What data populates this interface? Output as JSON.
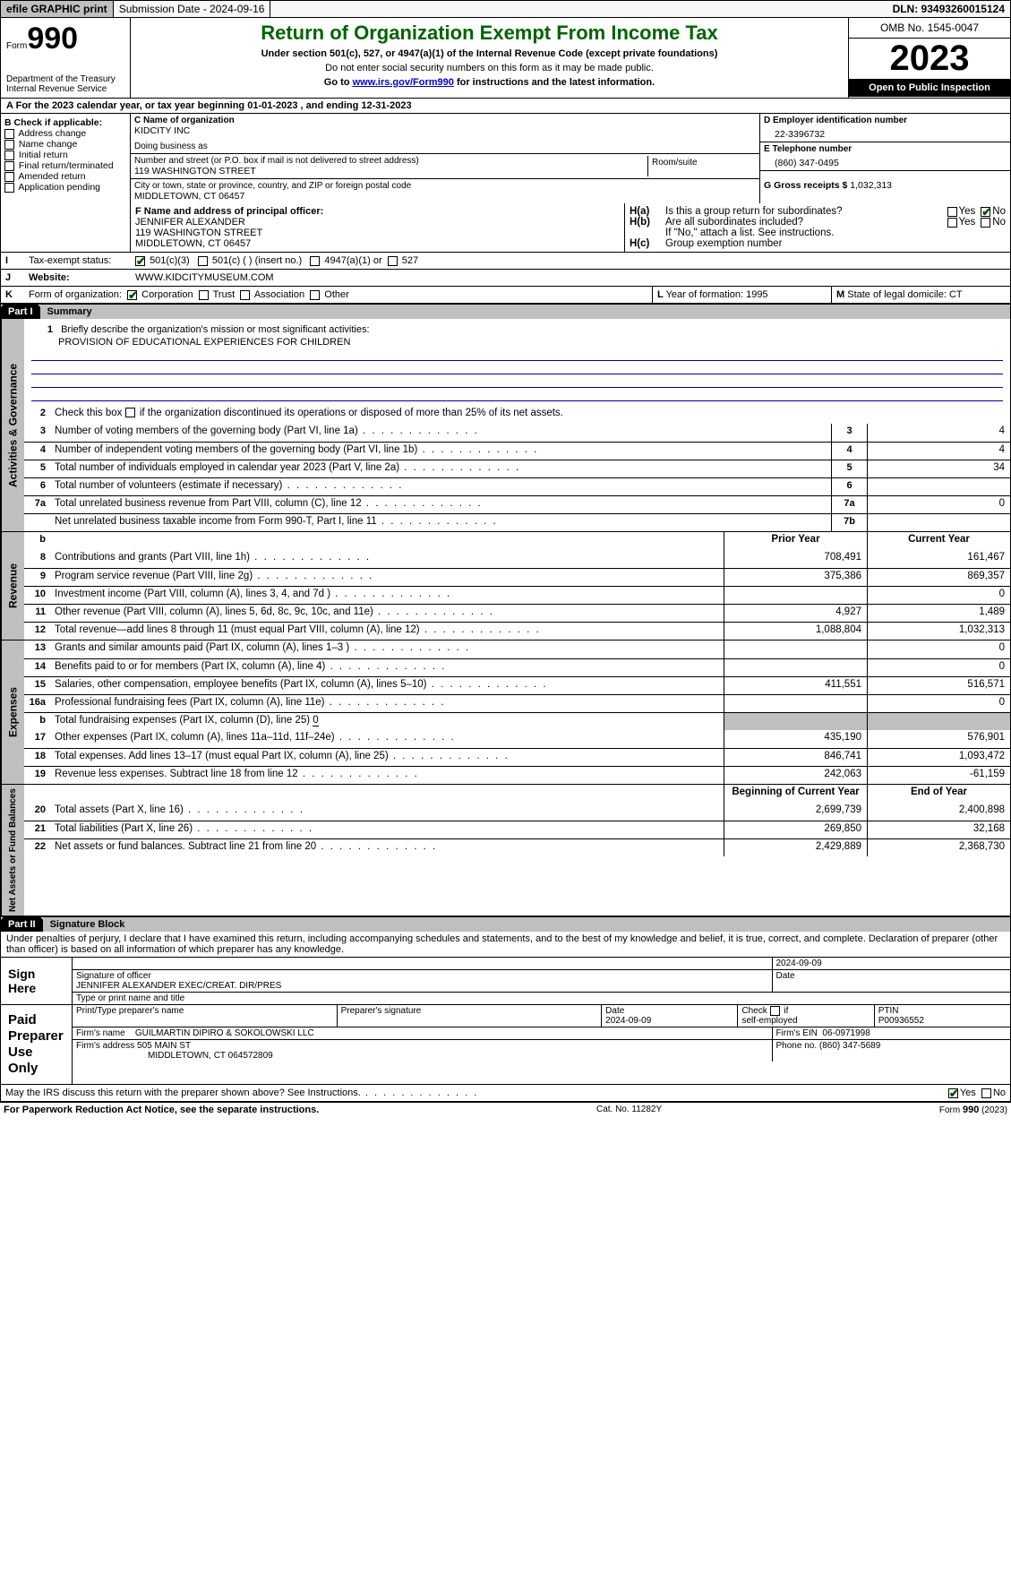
{
  "topbar": {
    "efile": "efile GRAPHIC print",
    "submission": "Submission Date - 2024-09-16",
    "dln": "DLN: 93493260015124"
  },
  "header": {
    "form_prefix": "Form",
    "form_number": "990",
    "title": "Return of Organization Exempt From Income Tax",
    "subtitle": "Under section 501(c), 527, or 4947(a)(1) of the Internal Revenue Code (except private foundations)",
    "ssn_note": "Do not enter social security numbers on this form as it may be made public.",
    "goto_prefix": "Go to ",
    "goto_link": "www.irs.gov/Form990",
    "goto_suffix": " for instructions and the latest information.",
    "dept": "Department of the Treasury\nInternal Revenue Service",
    "omb": "OMB No. 1545-0047",
    "year": "2023",
    "open": "Open to Public Inspection"
  },
  "lineA": "For the 2023 calendar year, or tax year beginning 01-01-2023   , and ending 12-31-2023",
  "boxB": {
    "label": "B Check if applicable:",
    "items": [
      "Address change",
      "Name change",
      "Initial return",
      "Final return/terminated",
      "Amended return",
      "Application pending"
    ]
  },
  "boxC": {
    "c_label": "C Name of organization",
    "org_name": "KIDCITY INC",
    "dba_label": "Doing business as",
    "street_label": "Number and street (or P.O. box if mail is not delivered to street address)",
    "street": "119 WASHINGTON STREET",
    "room_label": "Room/suite",
    "city_label": "City or town, state or province, country, and ZIP or foreign postal code",
    "city": "MIDDLETOWN, CT  06457"
  },
  "boxD": {
    "label": "D Employer identification number",
    "val": "22-3396732"
  },
  "boxE": {
    "label": "E Telephone number",
    "val": "(860) 347-0495"
  },
  "boxG": {
    "label": "G Gross receipts $ ",
    "val": "1,032,313"
  },
  "boxF": {
    "label": "F  Name and address of principal officer:",
    "name": "JENNIFER ALEXANDER",
    "street": "119 WASHINGTON STREET",
    "city": "MIDDLETOWN, CT  06457"
  },
  "boxH": {
    "a": "Is this a group return for subordinates?",
    "b": "Are all subordinates included?",
    "b_note": "If \"No,\" attach a list. See instructions.",
    "c": "Group exemption number"
  },
  "taxstatus": {
    "label": "Tax-exempt status:",
    "o1": "501(c)(3)",
    "o2": "501(c) (  ) (insert no.)",
    "o3": "4947(a)(1) or",
    "o4": "527"
  },
  "website": {
    "label": "Website:",
    "val": "WWW.KIDCITYMUSEUM.COM"
  },
  "boxK": {
    "label": "Form of organization:",
    "corp": "Corporation",
    "trust": "Trust",
    "assoc": "Association",
    "other": "Other"
  },
  "boxL": {
    "label": "Year of formation: ",
    "val": "1995"
  },
  "boxM": {
    "label": "State of legal domicile: ",
    "val": "CT"
  },
  "part1": {
    "hdr": "Part I",
    "title": "Summary"
  },
  "mission": {
    "label": "Briefly describe the organization's mission or most significant activities:",
    "text": "PROVISION OF EDUCATIONAL EXPERIENCES FOR CHILDREN"
  },
  "line2": "Check this box       if the organization discontinued its operations or disposed of more than 25% of its net assets.",
  "governance_lines": [
    {
      "n": "3",
      "d": "Number of voting members of the governing body (Part VI, line 1a)",
      "box": "3",
      "v": "4"
    },
    {
      "n": "4",
      "d": "Number of independent voting members of the governing body (Part VI, line 1b)",
      "box": "4",
      "v": "4"
    },
    {
      "n": "5",
      "d": "Total number of individuals employed in calendar year 2023 (Part V, line 2a)",
      "box": "5",
      "v": "34"
    },
    {
      "n": "6",
      "d": "Total number of volunteers (estimate if necessary)",
      "box": "6",
      "v": ""
    },
    {
      "n": "7a",
      "d": "Total unrelated business revenue from Part VIII, column (C), line 12",
      "box": "7a",
      "v": "0"
    },
    {
      "n": "",
      "d": "Net unrelated business taxable income from Form 990-T, Part I, line 11",
      "box": "7b",
      "v": ""
    }
  ],
  "revexp_hdr": {
    "prior": "Prior Year",
    "current": "Current Year"
  },
  "revenue_lines": [
    {
      "n": "8",
      "d": "Contributions and grants (Part VIII, line 1h)",
      "p": "708,491",
      "c": "161,467"
    },
    {
      "n": "9",
      "d": "Program service revenue (Part VIII, line 2g)",
      "p": "375,386",
      "c": "869,357"
    },
    {
      "n": "10",
      "d": "Investment income (Part VIII, column (A), lines 3, 4, and 7d )",
      "p": "",
      "c": "0"
    },
    {
      "n": "11",
      "d": "Other revenue (Part VIII, column (A), lines 5, 6d, 8c, 9c, 10c, and 11e)",
      "p": "4,927",
      "c": "1,489"
    },
    {
      "n": "12",
      "d": "Total revenue—add lines 8 through 11 (must equal Part VIII, column (A), line 12)",
      "p": "1,088,804",
      "c": "1,032,313"
    }
  ],
  "expense_lines": [
    {
      "n": "13",
      "d": "Grants and similar amounts paid (Part IX, column (A), lines 1–3 )",
      "p": "",
      "c": "0"
    },
    {
      "n": "14",
      "d": "Benefits paid to or for members (Part IX, column (A), line 4)",
      "p": "",
      "c": "0"
    },
    {
      "n": "15",
      "d": "Salaries, other compensation, employee benefits (Part IX, column (A), lines 5–10)",
      "p": "411,551",
      "c": "516,571"
    },
    {
      "n": "16a",
      "d": "Professional fundraising fees (Part IX, column (A), line 11e)",
      "p": "",
      "c": "0"
    }
  ],
  "line16b": {
    "n": "b",
    "d": "Total fundraising expenses (Part IX, column (D), line 25)",
    "v": "0"
  },
  "expense_lines2": [
    {
      "n": "17",
      "d": "Other expenses (Part IX, column (A), lines 11a–11d, 11f–24e)",
      "p": "435,190",
      "c": "576,901"
    },
    {
      "n": "18",
      "d": "Total expenses. Add lines 13–17 (must equal Part IX, column (A), line 25)",
      "p": "846,741",
      "c": "1,093,472"
    },
    {
      "n": "19",
      "d": "Revenue less expenses. Subtract line 18 from line 12",
      "p": "242,063",
      "c": "-61,159"
    }
  ],
  "netassets_hdr": {
    "begin": "Beginning of Current Year",
    "end": "End of Year"
  },
  "netassets_lines": [
    {
      "n": "20",
      "d": "Total assets (Part X, line 16)",
      "p": "2,699,739",
      "c": "2,400,898"
    },
    {
      "n": "21",
      "d": "Total liabilities (Part X, line 26)",
      "p": "269,850",
      "c": "32,168"
    },
    {
      "n": "22",
      "d": "Net assets or fund balances. Subtract line 21 from line 20",
      "p": "2,429,889",
      "c": "2,368,730"
    }
  ],
  "vtabs": {
    "gov": "Activities & Governance",
    "rev": "Revenue",
    "exp": "Expenses",
    "net": "Net Assets or Fund Balances"
  },
  "part2": {
    "hdr": "Part II",
    "title": "Signature Block"
  },
  "perjury": "Under penalties of perjury, I declare that I have examined this return, including accompanying schedules and statements, and to the best of my knowledge and belief, it is true, correct, and complete. Declaration of preparer (other than officer) is based on all information of which preparer has any knowledge.",
  "sign": {
    "left": "Sign Here",
    "date": "2024-09-09",
    "sig_label": "Signature of officer",
    "name": "JENNIFER ALEXANDER  EXEC/CREAT. DIR/PRES",
    "name_label": "Type or print name and title",
    "date_label": "Date"
  },
  "preparer": {
    "left": "Paid Preparer Use Only",
    "r1": {
      "c1": "Print/Type preparer's name",
      "c2": "Preparer's signature",
      "c3_lbl": "Date",
      "c3_val": "2024-09-09",
      "c4": "Check         if self-employed",
      "c5_lbl": "PTIN",
      "c5_val": "P00936552"
    },
    "r2": {
      "lbl": "Firm's name",
      "val": "GUILMARTIN DIPIRO & SOKOLOWSKI LLC",
      "ein_lbl": "Firm's EIN",
      "ein_val": "06-0971998"
    },
    "r3": {
      "lbl": "Firm's address",
      "val1": "505 MAIN ST",
      "val2": "MIDDLETOWN, CT  064572809",
      "phone_lbl": "Phone no.",
      "phone_val": "(860) 347-5689"
    }
  },
  "discuss": "May the IRS discuss this return with the preparer shown above? See Instructions.",
  "footer": {
    "left": "For Paperwork Reduction Act Notice, see the separate instructions.",
    "mid": "Cat. No. 11282Y",
    "right_pre": "Form ",
    "right_b": "990",
    "right_post": " (2023)"
  },
  "yes": "Yes",
  "no": "No",
  "labels": {
    "A": "A",
    "B": "B",
    "I": "I",
    "J": "J",
    "K": "K",
    "L": "L",
    "M": "M",
    "H_a": "H(a)",
    "H_b": "H(b)",
    "H_c": "H(c)"
  }
}
